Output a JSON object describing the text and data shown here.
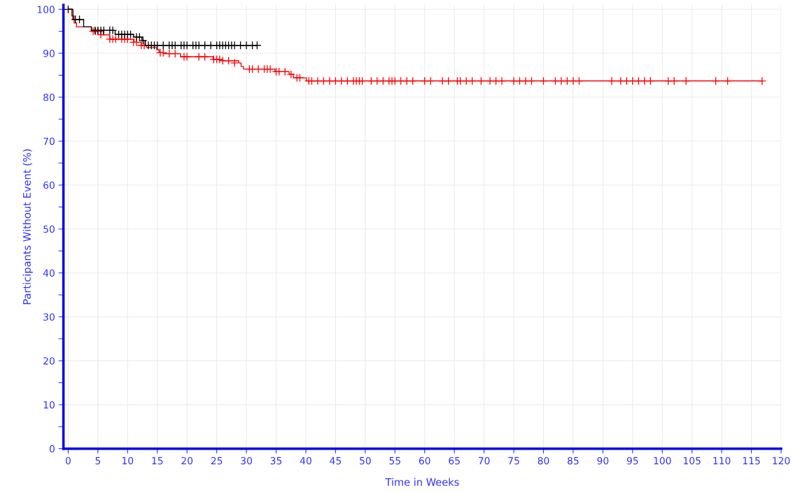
{
  "chart_data": {
    "type": "step",
    "xlabel": "Time in Weeks",
    "ylabel": "Participants Without Event (%)",
    "xlim": [
      -0.8,
      120
    ],
    "ylim": [
      0,
      101
    ],
    "xticks": [
      0,
      5,
      10,
      15,
      20,
      25,
      30,
      35,
      40,
      45,
      50,
      55,
      60,
      65,
      70,
      75,
      80,
      85,
      90,
      95,
      100,
      105,
      110,
      115,
      120
    ],
    "yticks": [
      0,
      {
        "value": 5,
        "label": null
      },
      10,
      {
        "value": 15,
        "label": null
      },
      20,
      {
        "value": 25,
        "label": null
      },
      30,
      {
        "value": 35,
        "label": null
      },
      40,
      {
        "value": 45,
        "label": null
      },
      50,
      {
        "value": 55,
        "label": null
      },
      60,
      {
        "value": 65,
        "label": null
      },
      70,
      {
        "value": 75,
        "label": null
      },
      80,
      {
        "value": 85,
        "label": null
      },
      90,
      {
        "value": 95,
        "label": null
      },
      100
    ],
    "grid": true,
    "legend": false,
    "series": [
      {
        "color": "#ff0000",
        "x": [
          0,
          0.6,
          1.0,
          1.4,
          3.9,
          5.9,
          7.0,
          11.1,
          12.3,
          13.2,
          14.9,
          15.3,
          16.1,
          18.9,
          24.4,
          25.9,
          28.7,
          29.1,
          29.5,
          34.8,
          37.2,
          37.9,
          40.1,
          116.8
        ],
        "values": [
          100,
          98.5,
          96.9,
          96.0,
          95.0,
          94.2,
          93.2,
          92.5,
          91.8,
          91.3,
          90.8,
          90.1,
          89.9,
          89.2,
          88.6,
          88.3,
          87.8,
          87.0,
          86.4,
          85.8,
          85.2,
          84.4,
          83.7,
          83.7
        ]
      },
      {
        "color": "#000000",
        "x": [
          0,
          0.8,
          2.6,
          3.9,
          7.9,
          11.0,
          12.4,
          13.0,
          31.8
        ],
        "values": [
          100,
          97.7,
          96.0,
          95.2,
          94.3,
          93.7,
          92.9,
          91.8,
          91.8
        ]
      },
      {
        "type": "scatter",
        "color": "#ff0000",
        "marker": "cross",
        "x": [
          4.2,
          4.6,
          5,
          5.5,
          7,
          7.5,
          8,
          9,
          9.5,
          10,
          11,
          11.5,
          12.3,
          12.8,
          15.5,
          16,
          17,
          18,
          19.5,
          20,
          22,
          23,
          24.5,
          25,
          25.5,
          26,
          27,
          28,
          30.5,
          31,
          32,
          33,
          33.5,
          34,
          35,
          35.5,
          36.5,
          37.5,
          38.5,
          39,
          40.5,
          41,
          42,
          43,
          44,
          45,
          46,
          47,
          48,
          48.5,
          49,
          49.5,
          51,
          52,
          53,
          54,
          54.5,
          55,
          56,
          57,
          58,
          60,
          61,
          63,
          64,
          65.5,
          66,
          67,
          68,
          69.5,
          71,
          72,
          73,
          75,
          76,
          77,
          78,
          80,
          82,
          83,
          84,
          85,
          86,
          91.5,
          93,
          94,
          95,
          96,
          97,
          98,
          101,
          102,
          104,
          109,
          111,
          116.8
        ],
        "values": [
          95.0,
          95.0,
          95.0,
          94.2,
          93.2,
          93.2,
          93.2,
          93.2,
          93.2,
          93.2,
          92.5,
          92.5,
          91.8,
          91.8,
          90.1,
          90.1,
          89.9,
          89.9,
          89.2,
          89.2,
          89.2,
          89.2,
          88.6,
          88.6,
          88.6,
          88.3,
          88.3,
          87.8,
          86.4,
          86.4,
          86.4,
          86.4,
          86.4,
          86.4,
          85.8,
          85.8,
          85.8,
          85.2,
          84.4,
          84.4,
          83.7,
          83.7,
          83.7,
          83.7,
          83.7,
          83.7,
          83.7,
          83.7,
          83.7,
          83.7,
          83.7,
          83.7,
          83.7,
          83.7,
          83.7,
          83.7,
          83.7,
          83.7,
          83.7,
          83.7,
          83.7,
          83.7,
          83.7,
          83.7,
          83.7,
          83.7,
          83.7,
          83.7,
          83.7,
          83.7,
          83.7,
          83.7,
          83.7,
          83.7,
          83.7,
          83.7,
          83.7,
          83.7,
          83.7,
          83.7,
          83.7,
          83.7,
          83.7,
          83.7,
          83.7,
          83.7,
          83.7,
          83.7,
          83.7,
          83.7,
          83.7,
          83.7,
          83.7,
          83.7,
          83.7,
          83.7
        ]
      },
      {
        "type": "scatter",
        "color": "#000000",
        "marker": "cross",
        "x": [
          0,
          1.2,
          1.9,
          4.5,
          5,
          5.5,
          6,
          7,
          7.5,
          8.5,
          9,
          9.5,
          10,
          10.5,
          11.5,
          12,
          12.6,
          13.5,
          14,
          14.5,
          15,
          16,
          17,
          17.5,
          18,
          19,
          19.5,
          20,
          21,
          21.5,
          22,
          23,
          24,
          25,
          25.5,
          26,
          26.5,
          27,
          27.5,
          28,
          29,
          30,
          31,
          31.8
        ],
        "values": [
          100,
          97.7,
          97.7,
          95.2,
          95.2,
          95.2,
          95.2,
          95.2,
          95.2,
          94.3,
          94.3,
          94.3,
          94.3,
          94.3,
          93.7,
          93.7,
          92.9,
          91.8,
          91.8,
          91.8,
          91.8,
          91.8,
          91.8,
          91.8,
          91.8,
          91.8,
          91.8,
          91.8,
          91.8,
          91.8,
          91.8,
          91.8,
          91.8,
          91.8,
          91.8,
          91.8,
          91.8,
          91.8,
          91.8,
          91.8,
          91.8,
          91.8,
          91.8,
          91.8
        ]
      }
    ]
  }
}
